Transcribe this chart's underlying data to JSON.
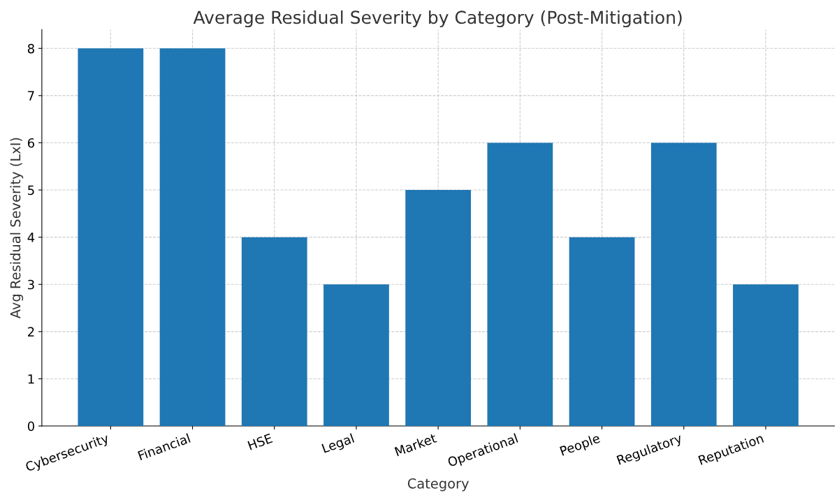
{
  "chart_data": {
    "type": "bar",
    "title": "Average Residual Severity by Category (Post-Mitigation)",
    "xlabel": "Category",
    "ylabel": "Avg Residual Severity (LxI)",
    "categories": [
      "Cybersecurity",
      "Financial",
      "HSE",
      "Legal",
      "Market",
      "Operational",
      "People",
      "Regulatory",
      "Reputation"
    ],
    "values": [
      8,
      8,
      4,
      3,
      5,
      6,
      4,
      6,
      3
    ],
    "color": "#1f77b4",
    "ylim": [
      0,
      8.4
    ],
    "yticks": [
      0,
      1,
      2,
      3,
      4,
      5,
      6,
      7,
      8
    ],
    "grid": true,
    "legend": false
  }
}
